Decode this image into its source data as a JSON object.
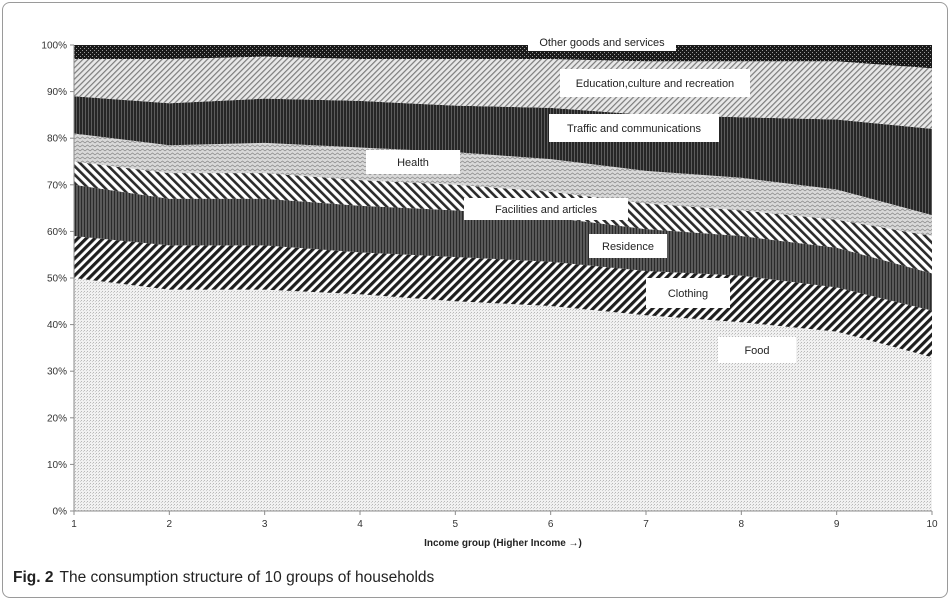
{
  "chart_data": {
    "type": "area",
    "stacked": true,
    "x": [
      1,
      2,
      3,
      4,
      5,
      6,
      7,
      8,
      9,
      10
    ],
    "xlabel": "Income group (Higher Income →)",
    "ylabel": "",
    "ylim": [
      0,
      100
    ],
    "y_ticks": [
      "0%",
      "10%",
      "20%",
      "30%",
      "40%",
      "50%",
      "60%",
      "70%",
      "80%",
      "90%",
      "100%"
    ],
    "x_ticks": [
      "1",
      "2",
      "3",
      "4",
      "5",
      "6",
      "7",
      "8",
      "9",
      "10"
    ],
    "grid": false,
    "legend": "inline labels",
    "series": [
      {
        "name": "Food",
        "values": [
          50.0,
          47.5,
          47.5,
          46.5,
          45.0,
          44.0,
          42.0,
          40.5,
          38.5,
          33.0
        ]
      },
      {
        "name": "Clothing",
        "values": [
          9.0,
          9.5,
          9.5,
          9.0,
          9.5,
          9.5,
          9.5,
          10.0,
          9.5,
          10.0
        ]
      },
      {
        "name": "Residence",
        "values": [
          11.0,
          10.0,
          10.0,
          10.0,
          10.0,
          9.5,
          9.0,
          8.5,
          8.5,
          8.0
        ]
      },
      {
        "name": "Facilities and articles",
        "values": [
          5.0,
          5.5,
          5.5,
          5.5,
          5.5,
          5.5,
          5.5,
          5.5,
          6.0,
          8.0
        ]
      },
      {
        "name": "Health",
        "values": [
          6.0,
          6.0,
          6.5,
          7.0,
          7.0,
          7.0,
          7.0,
          7.0,
          6.5,
          4.5
        ]
      },
      {
        "name": "Traffic and communications",
        "values": [
          8.0,
          9.0,
          9.5,
          10.0,
          10.0,
          11.0,
          12.0,
          13.0,
          15.0,
          18.5
        ]
      },
      {
        "name": "Education,culture and recreation",
        "values": [
          8.0,
          9.5,
          9.0,
          9.0,
          10.0,
          10.5,
          11.5,
          12.0,
          12.5,
          13.0
        ]
      },
      {
        "name": "Other goods and services",
        "values": [
          3.0,
          3.0,
          2.5,
          3.0,
          3.0,
          3.0,
          3.5,
          3.5,
          3.5,
          5.0
        ]
      }
    ]
  },
  "caption": {
    "figure_label": "Fig. 2",
    "text": "The consumption structure of 10 groups of households"
  }
}
